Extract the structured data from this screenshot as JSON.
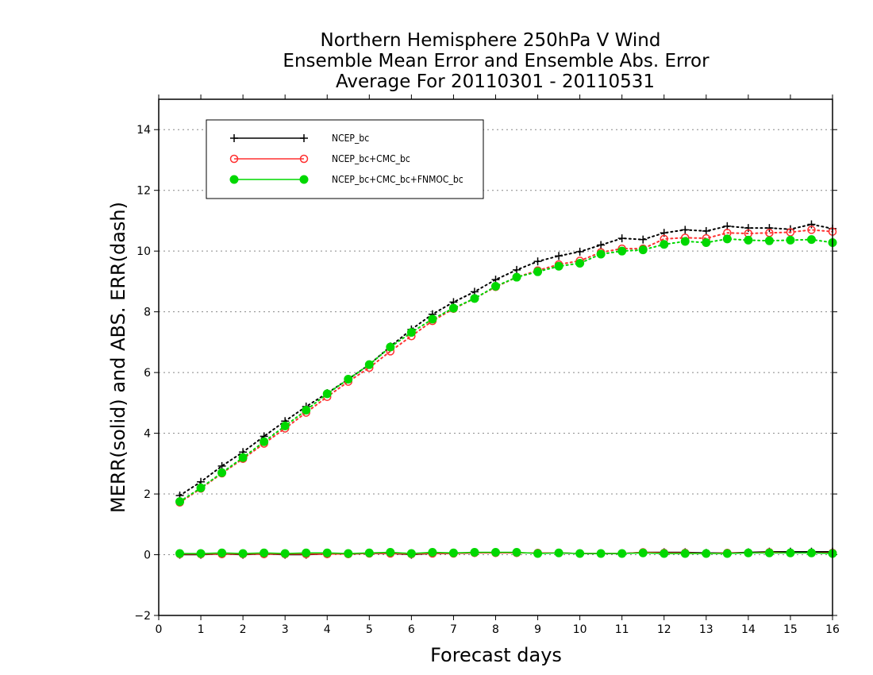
{
  "chart_data": {
    "type": "line",
    "title_lines": [
      "Northern Hemisphere 250hPa V Wind",
      "Ensemble Mean Error and Ensemble Abs. Error",
      "Average For 20110301 - 20110531"
    ],
    "xlabel": "Forecast days",
    "ylabel": "MERR(solid) and ABS. ERR(dash)",
    "xlim": [
      0,
      16
    ],
    "ylim": [
      -2,
      15
    ],
    "xticks": [
      0,
      1,
      2,
      3,
      4,
      5,
      6,
      7,
      8,
      9,
      10,
      11,
      12,
      13,
      14,
      15,
      16
    ],
    "yticks": [
      -2,
      0,
      2,
      4,
      6,
      8,
      10,
      12,
      14
    ],
    "grid": "horizontal dotted",
    "legend_position": "top-left",
    "x": [
      0.5,
      1,
      1.5,
      2,
      2.5,
      3,
      3.5,
      4,
      4.5,
      5,
      5.5,
      6,
      6.5,
      7,
      7.5,
      8,
      8.5,
      9,
      9.5,
      10,
      10.5,
      11,
      11.5,
      12,
      12.5,
      13,
      13.5,
      14,
      14.5,
      15,
      15.5,
      16
    ],
    "series": [
      {
        "name": "NCEP_bc",
        "color": "#000000",
        "marker": "plus",
        "abs_error": [
          1.95,
          2.4,
          2.92,
          3.38,
          3.9,
          4.4,
          4.88,
          5.32,
          5.78,
          6.26,
          6.86,
          7.42,
          7.92,
          8.32,
          8.66,
          9.06,
          9.38,
          9.66,
          9.84,
          9.98,
          10.2,
          10.42,
          10.38,
          10.6,
          10.7,
          10.66,
          10.82,
          10.76,
          10.76,
          10.72,
          10.88,
          10.74
        ],
        "mean_error": [
          0.0,
          0.0,
          0.02,
          0.0,
          0.02,
          0.0,
          0.0,
          0.02,
          0.02,
          0.04,
          0.04,
          0.0,
          0.04,
          0.04,
          0.06,
          0.06,
          0.06,
          0.06,
          0.06,
          0.04,
          0.04,
          0.04,
          0.08,
          0.08,
          0.08,
          0.06,
          0.06,
          0.08,
          0.1,
          0.1,
          0.1,
          0.1
        ]
      },
      {
        "name": "NCEP_bc+CMC_bc",
        "color": "#ff3030",
        "marker": "open-circle",
        "abs_error": [
          1.72,
          2.18,
          2.68,
          3.16,
          3.66,
          4.16,
          4.68,
          5.2,
          5.7,
          6.16,
          6.7,
          7.2,
          7.7,
          8.1,
          8.44,
          8.82,
          9.14,
          9.36,
          9.56,
          9.68,
          9.96,
          10.08,
          10.08,
          10.4,
          10.44,
          10.42,
          10.6,
          10.58,
          10.6,
          10.62,
          10.7,
          10.64
        ],
        "mean_error": [
          0.02,
          0.02,
          0.02,
          0.02,
          0.02,
          0.02,
          0.02,
          0.02,
          0.02,
          0.04,
          0.04,
          0.02,
          0.04,
          0.04,
          0.06,
          0.06,
          0.06,
          0.06,
          0.06,
          0.04,
          0.04,
          0.04,
          0.08,
          0.06,
          0.06,
          0.04,
          0.06,
          0.06,
          0.08,
          0.06,
          0.06,
          0.06
        ]
      },
      {
        "name": "NCEP_bc+CMC_bc+FNMOC_bc",
        "color": "#00d800",
        "marker": "filled-circle",
        "abs_error": [
          1.75,
          2.2,
          2.7,
          3.2,
          3.72,
          4.24,
          4.76,
          5.3,
          5.78,
          6.26,
          6.84,
          7.32,
          7.76,
          8.12,
          8.44,
          8.84,
          9.14,
          9.32,
          9.5,
          9.6,
          9.9,
          10.0,
          10.04,
          10.22,
          10.32,
          10.28,
          10.4,
          10.36,
          10.34,
          10.36,
          10.38,
          10.28
        ],
        "mean_error": [
          0.04,
          0.04,
          0.06,
          0.04,
          0.06,
          0.04,
          0.06,
          0.06,
          0.04,
          0.06,
          0.08,
          0.04,
          0.08,
          0.06,
          0.08,
          0.08,
          0.08,
          0.04,
          0.06,
          0.04,
          0.04,
          0.04,
          0.06,
          0.04,
          0.04,
          0.04,
          0.04,
          0.06,
          0.06,
          0.06,
          0.06,
          0.04
        ]
      }
    ]
  }
}
